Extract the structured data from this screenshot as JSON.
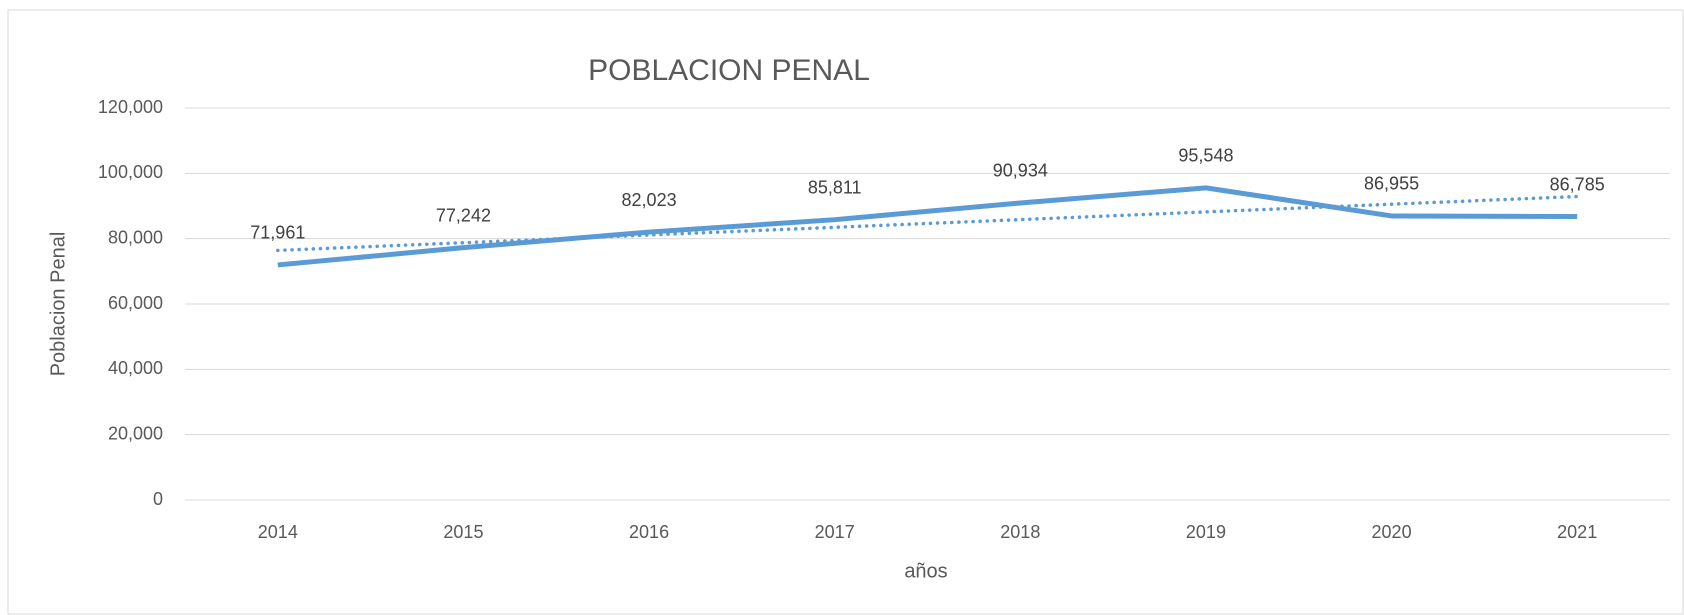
{
  "chart_data": {
    "type": "line",
    "title": "POBLACION PENAL",
    "x_label": "años",
    "y_label": "Poblacion Penal",
    "categories": [
      "2014",
      "2015",
      "2016",
      "2017",
      "2018",
      "2019",
      "2020",
      "2021"
    ],
    "values": [
      71961,
      77242,
      82023,
      85811,
      90934,
      95548,
      86955,
      86785
    ],
    "value_labels": [
      "71,961",
      "77,242",
      "82,023",
      "85,811",
      "90,934",
      "95,548",
      "86,955",
      "86,785"
    ],
    "color": "#5b9bd5",
    "trendline": "linear",
    "ylim": [
      0,
      120000
    ],
    "yticks": [
      0,
      {
        "value": 20000,
        "label": "20,000"
      },
      {
        "value": 40000,
        "label": "40,000"
      },
      {
        "value": 60000,
        "label": "60,000"
      },
      {
        "value": 80000,
        "label": "80,000"
      },
      {
        "value": 100000,
        "label": "100,000"
      },
      {
        "value": 120000,
        "label": "120,000"
      }
    ],
    "grid": true
  }
}
